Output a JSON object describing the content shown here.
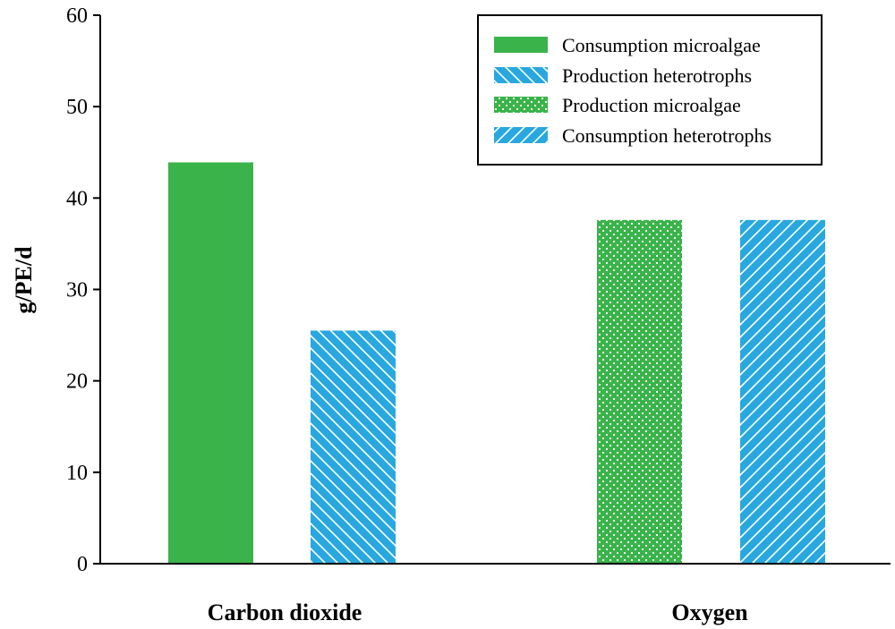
{
  "chart_data": {
    "type": "bar",
    "title": "",
    "xlabel": "",
    "ylabel": "g/PE/d",
    "ylim": [
      0,
      60
    ],
    "yticks": [
      0,
      10,
      20,
      30,
      40,
      50,
      60
    ],
    "grid": false,
    "legend_position": "top-right",
    "categories": [
      "Carbon dioxide",
      "Oxygen"
    ],
    "bars": [
      {
        "category": "Carbon dioxide",
        "series": "Consumption microalgae",
        "value": 43.9
      },
      {
        "category": "Carbon dioxide",
        "series": "Production heterotrophs",
        "value": 25.5
      },
      {
        "category": "Oxygen",
        "series": "Production microalgae",
        "value": 37.6
      },
      {
        "category": "Oxygen",
        "series": "Consumption heterotrophs",
        "value": 37.6
      }
    ],
    "legend": [
      {
        "label": "Consumption microalgae",
        "pattern": "solid-green"
      },
      {
        "label": "Production heterotrophs",
        "pattern": "backslash-blue"
      },
      {
        "label": "Production microalgae",
        "pattern": "dots-green"
      },
      {
        "label": "Consumption heterotrophs",
        "pattern": "slash-blue"
      }
    ],
    "colors": {
      "green": "#3ab34a",
      "blue": "#29a8e0"
    }
  }
}
